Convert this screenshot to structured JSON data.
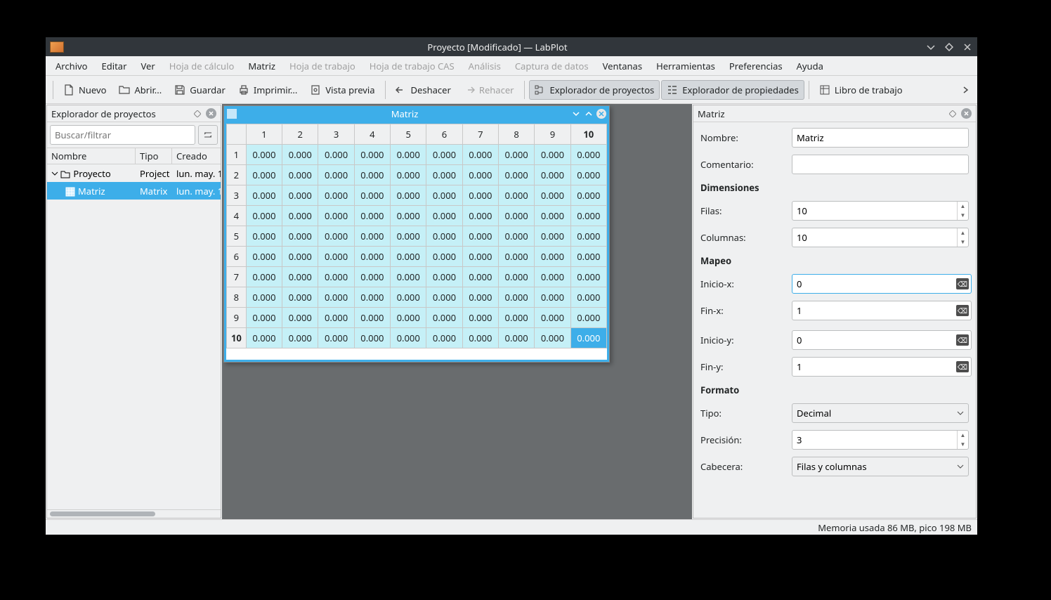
{
  "window": {
    "title": "Proyecto [Modificado] — LabPlot"
  },
  "menubar": [
    {
      "label": "Archivo",
      "enabled": true
    },
    {
      "label": "Editar",
      "enabled": true
    },
    {
      "label": "Ver",
      "enabled": true
    },
    {
      "label": "Hoja de cálculo",
      "enabled": false
    },
    {
      "label": "Matriz",
      "enabled": true
    },
    {
      "label": "Hoja de trabajo",
      "enabled": false
    },
    {
      "label": "Hoja de trabajo CAS",
      "enabled": false
    },
    {
      "label": "Análisis",
      "enabled": false
    },
    {
      "label": "Captura de datos",
      "enabled": false
    },
    {
      "label": "Ventanas",
      "enabled": true
    },
    {
      "label": "Herramientas",
      "enabled": true
    },
    {
      "label": "Preferencias",
      "enabled": true
    },
    {
      "label": "Ayuda",
      "enabled": true
    }
  ],
  "toolbar": {
    "nuevo": "Nuevo",
    "abrir": "Abrir...",
    "guardar": "Guardar",
    "imprimir": "Imprimir...",
    "vista_previa": "Vista previa",
    "deshacer": "Deshacer",
    "rehacer": "Rehacer",
    "explorador_proyectos": "Explorador de proyectos",
    "explorador_propiedades": "Explorador de propiedades",
    "libro_trabajo": "Libro de trabajo"
  },
  "project_explorer": {
    "title": "Explorador de proyectos",
    "search_placeholder": "Buscar/filtrar",
    "columns": {
      "nombre": "Nombre",
      "tipo": "Tipo",
      "creado": "Creado"
    },
    "rows": [
      {
        "name": "Proyecto",
        "type": "Project",
        "created": "lun. may. 1",
        "indent": 0,
        "expanded": true,
        "selected": false
      },
      {
        "name": "Matriz",
        "type": "Matrix",
        "created": "lun. may. 1",
        "indent": 1,
        "expanded": false,
        "selected": true
      }
    ]
  },
  "matrix_window": {
    "title": "Matriz",
    "cols": [
      "1",
      "2",
      "3",
      "4",
      "5",
      "6",
      "7",
      "8",
      "9",
      "10"
    ],
    "rows": [
      "1",
      "2",
      "3",
      "4",
      "5",
      "6",
      "7",
      "8",
      "9",
      "10"
    ],
    "cell_value": "0.000",
    "selected": {
      "row": 10,
      "col": 10
    },
    "highlight_col": 10,
    "highlight_row": 10
  },
  "properties": {
    "title": "Matriz",
    "nombre_label": "Nombre:",
    "nombre_value": "Matriz",
    "comentario_label": "Comentario:",
    "comentario_value": "",
    "dimensiones_label": "Dimensiones",
    "filas_label": "Filas:",
    "filas_value": "10",
    "columnas_label": "Columnas:",
    "columnas_value": "10",
    "mapeo_label": "Mapeo",
    "inicio_x_label": "Inicio-x:",
    "inicio_x_value": "0",
    "fin_x_label": "Fin-x:",
    "fin_x_value": "1",
    "inicio_y_label": "Inicio-y:",
    "inicio_y_value": "0",
    "fin_y_label": "Fin-y:",
    "fin_y_value": "1",
    "formato_label": "Formato",
    "tipo_label": "Tipo:",
    "tipo_value": "Decimal",
    "precision_label": "Precisión:",
    "precision_value": "3",
    "cabecera_label": "Cabecera:",
    "cabecera_value": "Filas y columnas"
  },
  "statusbar": {
    "text": "Memoria usada 86 MB, pico 198 MB"
  }
}
